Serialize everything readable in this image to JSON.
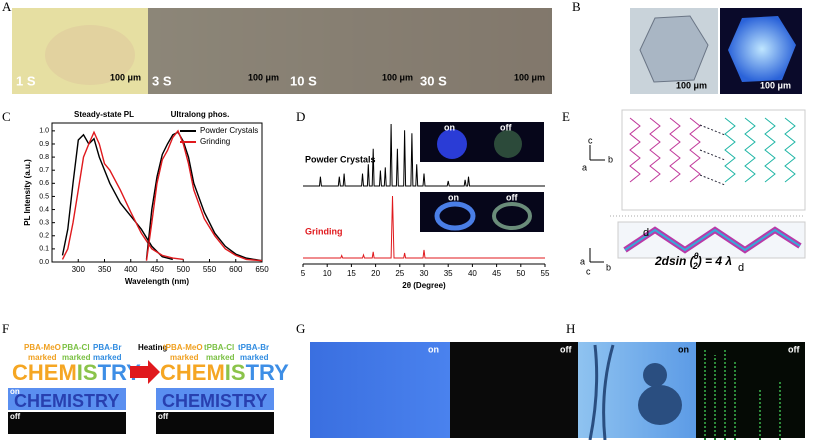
{
  "panels": {
    "a": {
      "letter": "A",
      "times": [
        "1 S",
        "3 S",
        "10 S",
        "30 S"
      ],
      "scale_bars": [
        "100 μm",
        "100 μm",
        "100 μm",
        "100 μm"
      ]
    },
    "b": {
      "letter": "B",
      "scale_bars": [
        "100 μm",
        "100 μm"
      ]
    },
    "c": {
      "letter": "C"
    },
    "d": {
      "letter": "D",
      "insets": [
        {
          "on": "on",
          "off": "off"
        },
        {
          "on": "on",
          "off": "off"
        }
      ]
    },
    "e": {
      "letter": "E",
      "axes_top": [
        "c",
        "a",
        "b"
      ],
      "axes_bottom": [
        "a",
        "c",
        "b"
      ],
      "d_labels": [
        "d",
        "d"
      ],
      "equation": {
        "left": "2dsin (",
        "theta": "θ",
        "two": "2",
        "right": ") = 4 λ"
      }
    },
    "f": {
      "letter": "F",
      "markers": [
        {
          "name": "PBA-MeO",
          "note": "marked"
        },
        {
          "name": "PBA-Cl",
          "note": "marked"
        },
        {
          "name": "PBA-Br",
          "note": "marked"
        }
      ],
      "markers_after": [
        {
          "name": "tPBA-MeO",
          "note": "marked"
        },
        {
          "name": "tPBA-Cl",
          "note": "marked"
        },
        {
          "name": "tPBA-Br",
          "note": "marked"
        }
      ],
      "word": [
        "CHEM",
        "IS",
        "TRY"
      ],
      "word_on": "CHEMISTRY",
      "on": "on",
      "off": "off",
      "arrow": "Heating"
    },
    "g": {
      "letter": "G",
      "on": "on",
      "off": "off"
    },
    "h": {
      "letter": "H",
      "on": "on",
      "off": "off"
    }
  },
  "chart_data": [
    {
      "type": "line",
      "annotations": [
        "Steady-state PL",
        "Ultralong phos."
      ],
      "xlabel": "Wavelength (nm)",
      "ylabel": "PL Intensity (a.u.)",
      "xlim": [
        250,
        650
      ],
      "xticks": [
        300,
        350,
        400,
        450,
        500,
        550,
        600,
        650
      ],
      "ylim": [
        0,
        1.06
      ],
      "yticks": [
        {
          "value": 0,
          "label": "0.0"
        },
        0.1,
        0.2,
        0.3,
        0.4,
        0.5,
        0.6,
        0.7,
        0.8,
        0.9,
        {
          "value": 1,
          "label": "1.0"
        }
      ],
      "legend": "upper right",
      "series": [
        {
          "name": "Powder Crystals",
          "color": "#000000",
          "x": [
            270,
            280,
            290,
            300,
            310,
            320,
            330,
            340,
            360,
            380,
            400,
            420,
            440,
            460,
            480
          ],
          "values": [
            0.05,
            0.25,
            0.6,
            0.93,
            0.97,
            0.9,
            0.94,
            0.8,
            0.6,
            0.45,
            0.35,
            0.25,
            0.12,
            0.04,
            0.02
          ]
        },
        {
          "name": "Grinding",
          "color": "#e0191d",
          "x": [
            270,
            280,
            290,
            300,
            310,
            320,
            330,
            340,
            350,
            360,
            380,
            400,
            420,
            440,
            460,
            480,
            500
          ],
          "values": [
            0.02,
            0.1,
            0.3,
            0.55,
            0.8,
            0.9,
            0.99,
            0.9,
            0.75,
            0.7,
            0.55,
            0.38,
            0.22,
            0.1,
            0.05,
            0.03,
            0.02
          ]
        },
        {
          "color": "#000000",
          "x": [
            430,
            440,
            450,
            460,
            470,
            480,
            490,
            500,
            510,
            520,
            540,
            560,
            580,
            600,
            620,
            650
          ],
          "values": [
            0.02,
            0.4,
            0.65,
            0.82,
            0.9,
            0.97,
            0.99,
            0.92,
            0.8,
            0.6,
            0.38,
            0.22,
            0.12,
            0.06,
            0.03,
            0.01
          ]
        },
        {
          "color": "#e0191d",
          "x": [
            430,
            440,
            450,
            460,
            470,
            480,
            490,
            500,
            510,
            520,
            540,
            560,
            580,
            600,
            620,
            650
          ],
          "values": [
            0.01,
            0.3,
            0.6,
            0.78,
            0.85,
            0.95,
            1,
            0.9,
            0.75,
            0.55,
            0.33,
            0.2,
            0.1,
            0.05,
            0.02,
            0.01
          ]
        }
      ]
    },
    {
      "type": "stacked-line",
      "xlabel": "2θ (Degree)",
      "xlim": [
        5,
        55
      ],
      "xticks": [
        5,
        10,
        15,
        20,
        25,
        30,
        35,
        40,
        45,
        50,
        55
      ],
      "series": [
        {
          "name": "Powder Crystals",
          "color": "#000000",
          "x": [
            5,
            8.4,
            8.6,
            8.8,
            12.3,
            12.5,
            12.7,
            13.3,
            13.5,
            13.7,
            17.1,
            17.3,
            17.5,
            18.3,
            18.5,
            18.7,
            19.3,
            19.5,
            19.7,
            20.8,
            21,
            21.2,
            21.8,
            22,
            22.2,
            23,
            23.2,
            23.4,
            24.3,
            24.5,
            24.7,
            25.8,
            26,
            26.2,
            27.3,
            27.5,
            27.7,
            28.3,
            28.5,
            28.7,
            29.8,
            30,
            30.2,
            34.8,
            35,
            35.2,
            38.3,
            38.5,
            38.7,
            39,
            39.2,
            39.4,
            55
          ],
          "values": [
            0,
            0,
            0.15,
            0,
            0,
            0.15,
            0,
            0,
            0.2,
            0,
            0,
            0.2,
            0,
            0,
            0.35,
            0,
            0,
            0.6,
            0,
            0,
            0.25,
            0,
            0,
            0.3,
            0,
            0,
            1,
            0,
            0,
            0.6,
            0,
            0,
            0.9,
            0,
            0,
            0.85,
            0,
            0,
            0.35,
            0,
            0,
            0.2,
            0,
            0,
            0.08,
            0,
            0,
            0.1,
            0,
            0,
            0.15,
            0,
            0
          ]
        },
        {
          "name": "Grinding",
          "color": "#e0191d",
          "x": [
            5,
            12.8,
            13,
            13.2,
            17.3,
            17.5,
            17.7,
            19.3,
            19.5,
            19.7,
            23.2,
            23.5,
            23.8,
            25.8,
            26,
            26.2,
            29.8,
            30,
            30.2,
            55
          ],
          "values": [
            0,
            0,
            0.04,
            0,
            0,
            0.05,
            0,
            0,
            0.1,
            0,
            0,
            1,
            0,
            0,
            0.08,
            0,
            0,
            0.13,
            0,
            0
          ]
        }
      ]
    }
  ]
}
